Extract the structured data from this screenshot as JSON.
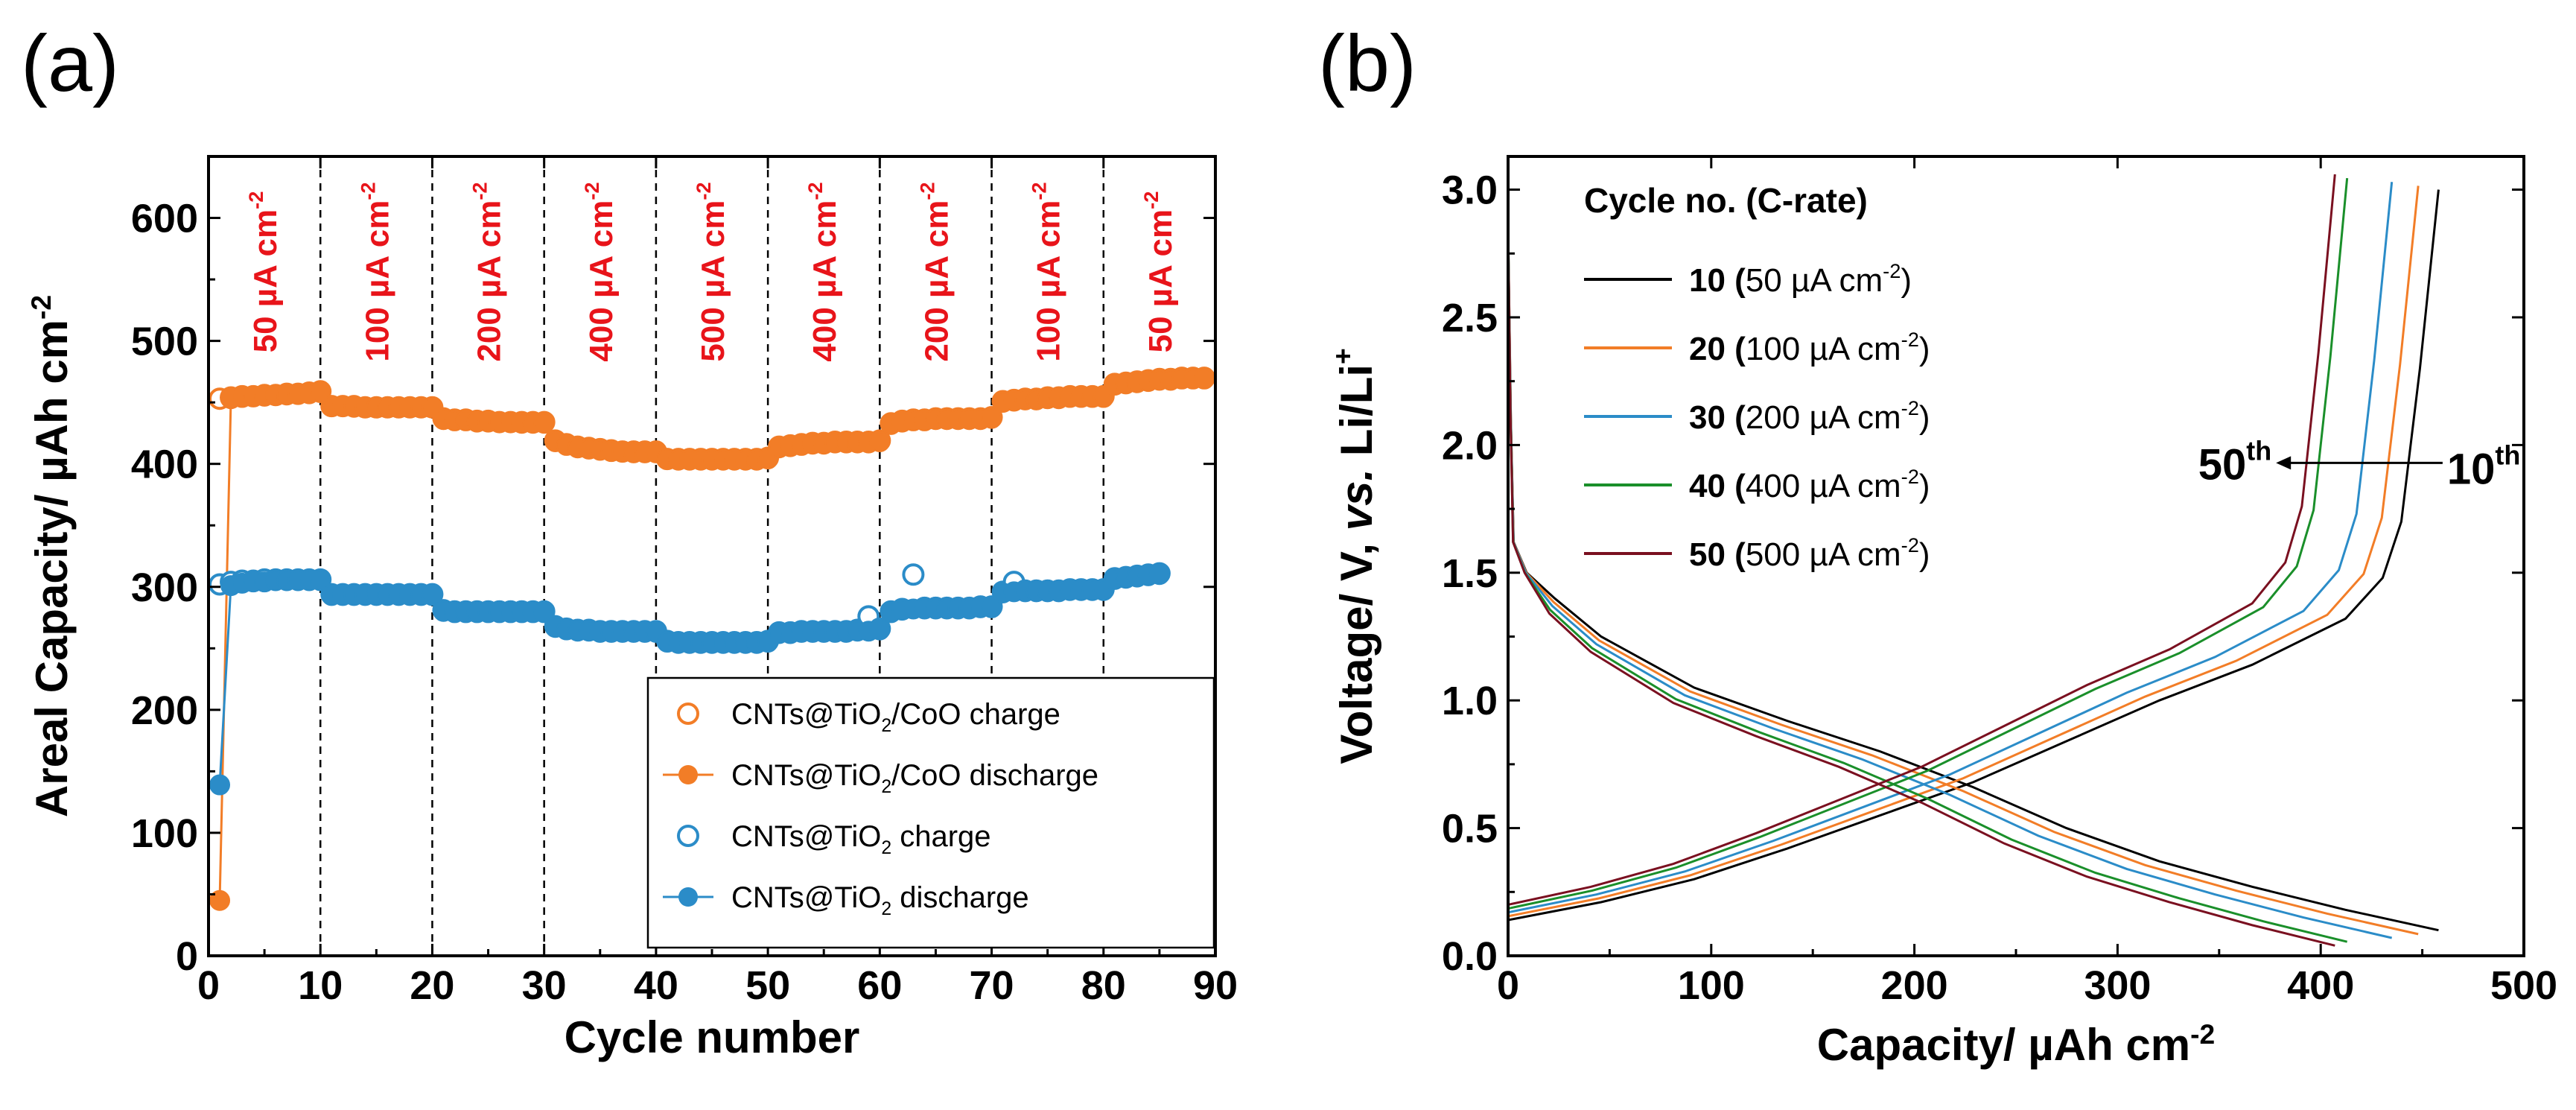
{
  "chart_data": [
    {
      "id": "a",
      "type": "scatter",
      "panel_label": "(a)",
      "xlabel": "Cycle number",
      "ylabel": "Areal Capacity/ µAh cm",
      "ylabel_sup": "-2",
      "xlim": [
        0,
        90
      ],
      "ylim": [
        0,
        650
      ],
      "xticks": [
        0,
        10,
        20,
        30,
        40,
        50,
        60,
        70,
        80,
        90
      ],
      "yticks": [
        0,
        100,
        200,
        300,
        400,
        500,
        600
      ],
      "dividers": [
        10,
        20,
        30,
        40,
        50,
        60,
        70,
        80
      ],
      "rate_labels": [
        {
          "x": 5,
          "text": "50 µA cm",
          "sup": "-2"
        },
        {
          "x": 15,
          "text": "100 µA cm",
          "sup": "-2"
        },
        {
          "x": 25,
          "text": "200 µA cm",
          "sup": "-2"
        },
        {
          "x": 35,
          "text": "400 µA cm",
          "sup": "-2"
        },
        {
          "x": 45,
          "text": "500 µA cm",
          "sup": "-2"
        },
        {
          "x": 55,
          "text": "400 µA cm",
          "sup": "-2"
        },
        {
          "x": 65,
          "text": "200 µA cm",
          "sup": "-2"
        },
        {
          "x": 75,
          "text": "100 µA cm",
          "sup": "-2"
        },
        {
          "x": 85,
          "text": "50 µA cm",
          "sup": "-2"
        }
      ],
      "series": [
        {
          "name": "CNTs@TiO2/CoO charge",
          "label_pre": "CNTs@TiO",
          "label_sub": "2",
          "label_post": "/CoO charge",
          "color": "#f27d27",
          "marker": "open-circle",
          "line": false,
          "x": [
            1,
            2,
            3,
            4,
            5,
            6,
            7,
            8,
            9,
            10,
            11,
            12,
            13,
            14,
            15,
            16,
            17,
            18,
            19,
            20,
            21,
            22,
            23,
            24,
            25,
            26,
            27,
            28,
            29,
            30,
            31,
            32,
            33,
            34,
            35,
            36,
            37,
            38,
            39,
            40,
            41,
            42,
            43,
            44,
            45,
            46,
            47,
            48,
            49,
            50,
            51,
            52,
            53,
            54,
            55,
            56,
            57,
            58,
            59,
            60,
            61,
            62,
            63,
            64,
            65,
            66,
            67,
            68,
            69,
            70,
            71,
            72,
            73,
            74,
            75,
            76,
            77,
            78,
            79,
            80,
            81,
            82,
            83,
            84,
            85,
            86,
            87,
            88,
            89
          ],
          "y": [
            453,
            454,
            455,
            455,
            456,
            456,
            457,
            457,
            458,
            459,
            447,
            447,
            447,
            446,
            446,
            446,
            446,
            446,
            446,
            446,
            437,
            436,
            436,
            435,
            435,
            434,
            434,
            434,
            434,
            434,
            419,
            416,
            414,
            413,
            412,
            411,
            410,
            410,
            410,
            410,
            404,
            404,
            404,
            404,
            404,
            404,
            404,
            404,
            404,
            405,
            414,
            415,
            416,
            417,
            417,
            418,
            418,
            418,
            418,
            419,
            433,
            435,
            436,
            436,
            437,
            437,
            437,
            437,
            437,
            438,
            451,
            452,
            453,
            453,
            454,
            454,
            455,
            455,
            455,
            455,
            465,
            466,
            467,
            468,
            469,
            469,
            470,
            470,
            470
          ]
        },
        {
          "name": "CNTs@TiO2/CoO discharge",
          "label_pre": "CNTs@TiO",
          "label_sub": "2",
          "label_post": "/CoO discharge",
          "color": "#f27d27",
          "marker": "filled-circle",
          "line": true,
          "x": [
            1,
            2,
            3,
            4,
            5,
            6,
            7,
            8,
            9,
            10,
            11,
            12,
            13,
            14,
            15,
            16,
            17,
            18,
            19,
            20,
            21,
            22,
            23,
            24,
            25,
            26,
            27,
            28,
            29,
            30,
            31,
            32,
            33,
            34,
            35,
            36,
            37,
            38,
            39,
            40,
            41,
            42,
            43,
            44,
            45,
            46,
            47,
            48,
            49,
            50,
            51,
            52,
            53,
            54,
            55,
            56,
            57,
            58,
            59,
            60,
            61,
            62,
            63,
            64,
            65,
            66,
            67,
            68,
            69,
            70,
            71,
            72,
            73,
            74,
            75,
            76,
            77,
            78,
            79,
            80,
            81,
            82,
            83,
            84,
            85,
            86,
            87,
            88,
            89
          ],
          "y": [
            45,
            453,
            454,
            455,
            455,
            456,
            456,
            457,
            457,
            458,
            447,
            447,
            446,
            446,
            446,
            446,
            446,
            446,
            446,
            446,
            436,
            435,
            435,
            434,
            434,
            434,
            434,
            433,
            433,
            433,
            418,
            415,
            413,
            412,
            411,
            410,
            410,
            409,
            409,
            409,
            404,
            403,
            403,
            403,
            403,
            403,
            403,
            403,
            403,
            404,
            413,
            414,
            415,
            416,
            416,
            417,
            417,
            417,
            417,
            418,
            432,
            434,
            435,
            435,
            436,
            436,
            436,
            436,
            436,
            437,
            450,
            451,
            452,
            452,
            453,
            453,
            454,
            454,
            454,
            454,
            464,
            465,
            466,
            467,
            468,
            468,
            469,
            469,
            469
          ]
        },
        {
          "name": "CNTs@TiO2 charge",
          "label_pre": "CNTs@TiO",
          "label_sub": "2",
          "label_post": " charge",
          "color": "#2b8cc8",
          "marker": "open-circle",
          "line": false,
          "x": [
            1,
            2,
            3,
            4,
            5,
            6,
            7,
            8,
            9,
            10,
            11,
            12,
            13,
            14,
            15,
            16,
            17,
            18,
            19,
            20,
            21,
            22,
            23,
            24,
            25,
            26,
            27,
            28,
            29,
            30,
            31,
            32,
            33,
            34,
            35,
            36,
            37,
            38,
            39,
            40,
            41,
            42,
            43,
            44,
            45,
            46,
            47,
            48,
            49,
            50,
            51,
            52,
            53,
            54,
            55,
            56,
            57,
            58,
            59,
            60,
            61,
            62,
            63,
            64,
            65,
            66,
            67,
            68,
            69,
            70,
            71,
            72,
            73,
            74,
            75,
            76,
            77,
            78,
            79,
            80,
            81,
            82,
            83,
            84,
            85
          ],
          "y": [
            302,
            304,
            305,
            305,
            306,
            306,
            306,
            306,
            306,
            306,
            294,
            294,
            294,
            294,
            294,
            294,
            294,
            294,
            294,
            294,
            281,
            280,
            280,
            280,
            280,
            280,
            280,
            280,
            280,
            280,
            268,
            266,
            265,
            265,
            264,
            264,
            264,
            264,
            264,
            264,
            256,
            255,
            255,
            255,
            255,
            255,
            255,
            255,
            255,
            256,
            263,
            263,
            264,
            264,
            264,
            264,
            264,
            265,
            276,
            266,
            280,
            282,
            310,
            283,
            283,
            283,
            283,
            283,
            284,
            284,
            296,
            304,
            297,
            297,
            297,
            297,
            298,
            298,
            298,
            298,
            307,
            308,
            309,
            310,
            311
          ]
        },
        {
          "name": "CNTs@TiO2 discharge",
          "label_pre": "CNTs@TiO",
          "label_sub": "2",
          "label_post": " discharge",
          "color": "#2b8cc8",
          "marker": "filled-circle",
          "line": true,
          "x": [
            1,
            2,
            3,
            4,
            5,
            6,
            7,
            8,
            9,
            10,
            11,
            12,
            13,
            14,
            15,
            16,
            17,
            18,
            19,
            20,
            21,
            22,
            23,
            24,
            25,
            26,
            27,
            28,
            29,
            30,
            31,
            32,
            33,
            34,
            35,
            36,
            37,
            38,
            39,
            40,
            41,
            42,
            43,
            44,
            45,
            46,
            47,
            48,
            49,
            50,
            51,
            52,
            53,
            54,
            55,
            56,
            57,
            58,
            59,
            60,
            61,
            62,
            63,
            64,
            65,
            66,
            67,
            68,
            69,
            70,
            71,
            72,
            73,
            74,
            75,
            76,
            77,
            78,
            79,
            80,
            81,
            82,
            83,
            84,
            85
          ],
          "y": [
            139,
            301,
            303,
            304,
            304,
            305,
            305,
            305,
            305,
            305,
            293,
            293,
            293,
            293,
            293,
            293,
            293,
            293,
            293,
            293,
            280,
            279,
            279,
            279,
            279,
            279,
            279,
            279,
            279,
            279,
            267,
            265,
            264,
            264,
            263,
            263,
            263,
            263,
            263,
            263,
            255,
            254,
            254,
            254,
            254,
            254,
            254,
            254,
            254,
            255,
            262,
            262,
            263,
            263,
            263,
            263,
            263,
            264,
            264,
            265,
            279,
            281,
            282,
            282,
            282,
            282,
            282,
            282,
            283,
            283,
            295,
            296,
            296,
            296,
            296,
            296,
            297,
            297,
            297,
            297,
            306,
            307,
            308,
            309,
            310
          ]
        }
      ]
    },
    {
      "id": "b",
      "type": "line",
      "panel_label": "(b)",
      "xlabel": "Capacity/ µAh cm",
      "xlabel_sup": "-2",
      "ylabel_pre": "Voltage/ V, ",
      "ylabel_italic": "vs.",
      "ylabel_post": " Li/Li",
      "ylabel_sup": "+",
      "xlim": [
        0,
        500
      ],
      "ylim": [
        0,
        3.0
      ],
      "xticks": [
        0,
        100,
        200,
        300,
        400,
        500
      ],
      "yticks": [
        0.0,
        0.5,
        1.0,
        1.5,
        2.0,
        2.5,
        3.0
      ],
      "legend_title": "Cycle no. (C-rate)",
      "series": [
        {
          "name": "10 (50 µA cm-2)",
          "cycle": "10",
          "rate": "50 µA cm",
          "sup": "-2",
          "color": "#000000",
          "charge_end": 458,
          "discharge_end": 458
        },
        {
          "name": "20 (100 µA cm-2)",
          "cycle": "20",
          "rate": "100 µA cm",
          "sup": "-2",
          "color": "#f27d27",
          "charge_end": 448,
          "discharge_end": 448
        },
        {
          "name": "30 (200 µA cm-2)",
          "cycle": "30",
          "rate": "200 µA cm",
          "sup": "-2",
          "color": "#2b8cc8",
          "charge_end": 435,
          "discharge_end": 435
        },
        {
          "name": "40 (400 µA cm-2)",
          "cycle": "40",
          "rate": "400 µA cm",
          "sup": "-2",
          "color": "#1a8f2a",
          "charge_end": 413,
          "discharge_end": 413
        },
        {
          "name": "50 (500 µA cm-2)",
          "cycle": "50",
          "rate": "500 µA cm",
          "sup": "-2",
          "color": "#7a1020",
          "charge_end": 407,
          "discharge_end": 407
        }
      ],
      "annotations": {
        "left_num": "50",
        "left_sup": "th",
        "right_num": "10",
        "right_sup": "th",
        "arrow_from_x": 460,
        "arrow_to_x": 378,
        "arrow_y": 1.93
      }
    }
  ]
}
